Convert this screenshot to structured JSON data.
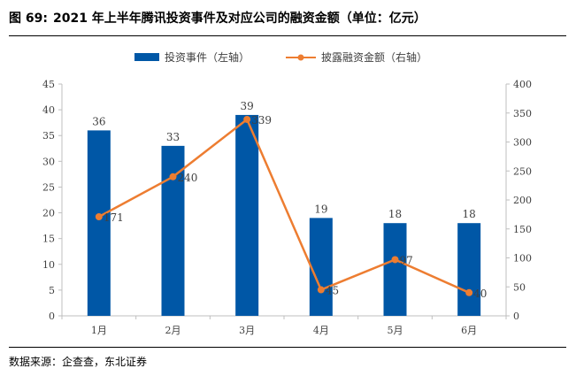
{
  "figure": {
    "label": "图 69:",
    "title": "2021 年上半年腾讯投资事件及对应公司的融资金额（单位：亿元）",
    "source": "数据来源：企查查，东北证券"
  },
  "chart_data": {
    "type": "bar",
    "categories": [
      "1月",
      "2月",
      "3月",
      "4月",
      "5月",
      "6月"
    ],
    "series": [
      {
        "name": "投资事件（左轴）",
        "type": "bar",
        "axis": "left",
        "color": "#0057A6",
        "values": [
          36,
          33,
          39,
          19,
          18,
          18
        ]
      },
      {
        "name": "披露融资金额（右轴）",
        "type": "line",
        "axis": "right",
        "color": "#ED7D31",
        "values": [
          171,
          240,
          339,
          45,
          97,
          40
        ]
      }
    ],
    "y_left": {
      "min": 0,
      "max": 45,
      "ticks": [
        0,
        5,
        10,
        15,
        20,
        25,
        30,
        35,
        40,
        45
      ]
    },
    "y_right": {
      "min": 0,
      "max": 400,
      "ticks": [
        0,
        50,
        100,
        150,
        200,
        250,
        300,
        350,
        400
      ]
    },
    "legend_position": "top-center",
    "grid": false
  }
}
